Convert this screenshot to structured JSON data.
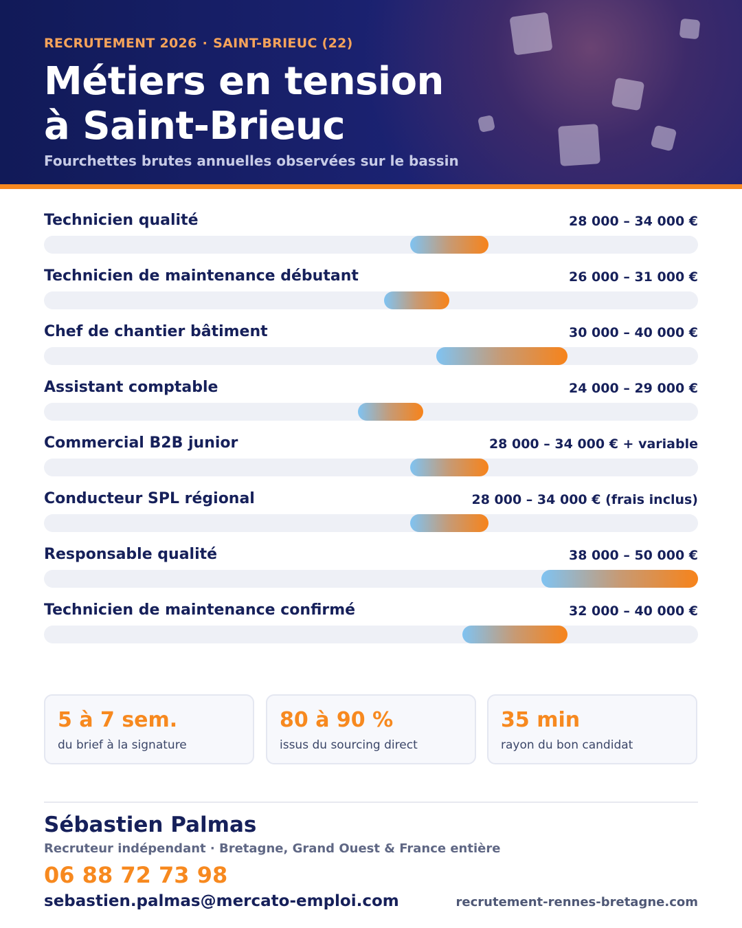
{
  "header": {
    "eyebrow_left": "RECRUTEMENT 2026",
    "eyebrow_sep": "·",
    "eyebrow_right": "SAINT-BRIEUC (22)",
    "title_line1": "Métiers en tension",
    "title_line2": "à Saint-Brieuc",
    "subtitle": "Fourchettes brutes annuelles observées sur le bassin"
  },
  "chart_data": {
    "type": "bar",
    "orientation": "horizontal-range",
    "unit": "€",
    "xlim": [
      0,
      50000
    ],
    "grid": false,
    "categories": [
      "Technicien qualité",
      "Technicien de maintenance débutant",
      "Chef de chantier bâtiment",
      "Assistant comptable",
      "Commercial B2B junior",
      "Conducteur SPL régional",
      "Responsable qualité",
      "Technicien de maintenance confirmé"
    ],
    "ranges": [
      [
        28000,
        34000
      ],
      [
        26000,
        31000
      ],
      [
        30000,
        40000
      ],
      [
        24000,
        29000
      ],
      [
        28000,
        34000
      ],
      [
        28000,
        34000
      ],
      [
        38000,
        50000
      ],
      [
        32000,
        40000
      ]
    ],
    "value_labels": [
      "28 000 – 34 000 €",
      "26 000 – 31 000 €",
      "30 000 – 40 000 €",
      "24 000 – 29 000 €",
      "28 000 – 34 000 € + variable",
      "28 000 – 34 000 € (frais inclus)",
      "38 000 – 50 000 €",
      "32 000 – 40 000 €"
    ],
    "colors": {
      "range_start": "#7fc3f2",
      "range_end": "#f7831a",
      "track": "#eef0f6"
    }
  },
  "stats": [
    {
      "value": "5 à 7 sem.",
      "label": "du brief à la signature"
    },
    {
      "value": "80 à 90 %",
      "label": "issus du sourcing direct"
    },
    {
      "value": "35 min",
      "label": "rayon du bon candidat"
    }
  ],
  "contact": {
    "name": "Sébastien Palmas",
    "role": "Recruteur indépendant · Bretagne, Grand Ouest & France entière",
    "phone": "06 88 72 73 98",
    "email": "sebastien.palmas@mercato-emploi.com",
    "website": "recrutement-rennes-bretagne.com"
  },
  "colors": {
    "navy": "#16205a",
    "accent": "#f7891f"
  }
}
